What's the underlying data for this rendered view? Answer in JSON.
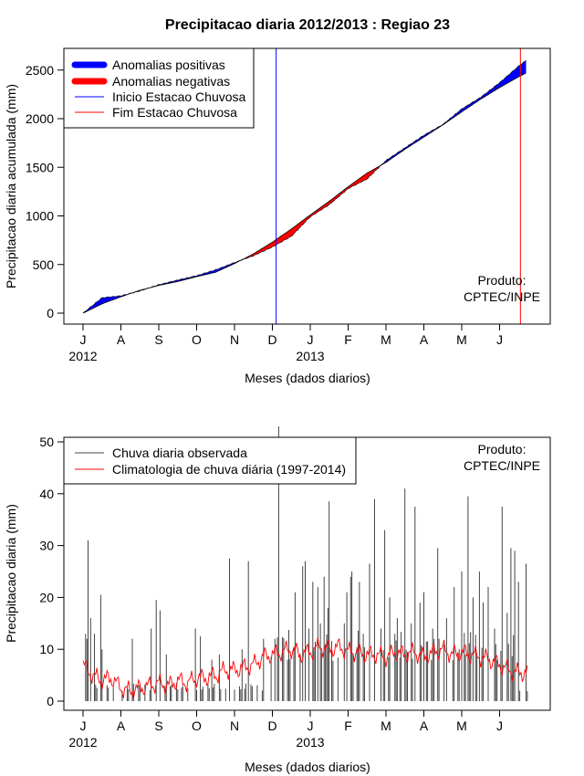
{
  "chart_data": [
    {
      "type": "area",
      "title": "Precipitacao diaria 2012/2013 : Regiao 23",
      "xlabel": "Meses (dados diarios)",
      "ylabel": "Precipitacao diaria acumulada (mm)",
      "ylim": [
        -100,
        2800
      ],
      "yticks": [
        0,
        500,
        1000,
        1500,
        2000,
        2500
      ],
      "month_labels": [
        "J",
        "A",
        "S",
        "O",
        "N",
        "D",
        "J",
        "F",
        "M",
        "A",
        "M",
        "J"
      ],
      "year_labels": [
        "2012",
        "2013"
      ],
      "legend_position": "top-left",
      "legend": [
        "Anomalias positivas",
        "Anomalias negativas",
        "Inicio Estacao Chuvosa",
        "Fim Estacao Chuvosa"
      ],
      "colors": {
        "positive": "#0000ff",
        "negative": "#ff0000",
        "start": "#0000ff",
        "end": "#ff0000"
      },
      "rainy_season_start_month": 5.1,
      "rainy_season_end_month": 11.55,
      "observed_month_points": [
        [
          0,
          0
        ],
        [
          0.5,
          158
        ],
        [
          1,
          178
        ],
        [
          1.5,
          228
        ],
        [
          2,
          292
        ],
        [
          2.5,
          340
        ],
        [
          3,
          385
        ],
        [
          3.5,
          445
        ],
        [
          4,
          520
        ],
        [
          4.5,
          590
        ],
        [
          5,
          680
        ],
        [
          5.5,
          790
        ],
        [
          6,
          990
        ],
        [
          6.5,
          1115
        ],
        [
          7,
          1280
        ],
        [
          7.5,
          1380
        ],
        [
          8,
          1570
        ],
        [
          8.5,
          1700
        ],
        [
          9,
          1830
        ],
        [
          9.5,
          1940
        ],
        [
          10,
          2100
        ],
        [
          10.5,
          2220
        ],
        [
          11,
          2370
        ],
        [
          11.5,
          2540
        ],
        [
          11.7,
          2600
        ]
      ],
      "climatology_month_points": [
        [
          0,
          0
        ],
        [
          0.5,
          95
        ],
        [
          1,
          168
        ],
        [
          1.5,
          235
        ],
        [
          2,
          285
        ],
        [
          2.5,
          325
        ],
        [
          3,
          375
        ],
        [
          3.5,
          420
        ],
        [
          4,
          510
        ],
        [
          4.5,
          610
        ],
        [
          5,
          730
        ],
        [
          5.5,
          865
        ],
        [
          6,
          1010
        ],
        [
          6.5,
          1150
        ],
        [
          7,
          1300
        ],
        [
          7.5,
          1440
        ],
        [
          8,
          1550
        ],
        [
          8.5,
          1685
        ],
        [
          9,
          1810
        ],
        [
          9.5,
          1935
        ],
        [
          10,
          2070
        ],
        [
          10.5,
          2200
        ],
        [
          11,
          2320
        ],
        [
          11.5,
          2430
        ],
        [
          11.7,
          2470
        ]
      ],
      "annotation": [
        "Produto:",
        "CPTEC/INPE"
      ]
    },
    {
      "type": "bar",
      "xlabel": "Meses (dados diarios)",
      "ylabel": "Precipitacao diaria (mm)",
      "ylim": [
        -1,
        51
      ],
      "yticks": [
        0,
        10,
        20,
        30,
        40,
        50
      ],
      "month_labels": [
        "J",
        "A",
        "S",
        "O",
        "N",
        "D",
        "J",
        "F",
        "M",
        "A",
        "M",
        "J"
      ],
      "year_labels": [
        "2012",
        "2013"
      ],
      "legend_position": "top-left",
      "legend": [
        "Chuva diaria observada",
        "Climatologia de chuva diária (1997-2014)"
      ],
      "colors": {
        "observed": "#444444",
        "climatology": "#ff0000"
      },
      "observed_peaks": [
        [
          0.05,
          13
        ],
        [
          0.1,
          12
        ],
        [
          0.13,
          31
        ],
        [
          0.2,
          16
        ],
        [
          0.3,
          13
        ],
        [
          0.45,
          20.5
        ],
        [
          0.5,
          10
        ],
        [
          1.3,
          12
        ],
        [
          1.8,
          14
        ],
        [
          1.95,
          19.5
        ],
        [
          2.05,
          17.5
        ],
        [
          2.2,
          9
        ],
        [
          2.95,
          14
        ],
        [
          3.1,
          12.5
        ],
        [
          3.4,
          8
        ],
        [
          3.6,
          9
        ],
        [
          3.85,
          27.5
        ],
        [
          4.2,
          10
        ],
        [
          4.35,
          27
        ],
        [
          4.75,
          12
        ],
        [
          5.05,
          12
        ],
        [
          5.15,
          53
        ],
        [
          5.6,
          21
        ],
        [
          5.8,
          26
        ],
        [
          5.85,
          27
        ],
        [
          5.95,
          14
        ],
        [
          6.05,
          23
        ],
        [
          6.2,
          22
        ],
        [
          6.25,
          15
        ],
        [
          6.35,
          24
        ],
        [
          6.45,
          18
        ],
        [
          6.5,
          38.5
        ],
        [
          6.9,
          15
        ],
        [
          6.95,
          21
        ],
        [
          7.05,
          24
        ],
        [
          7.1,
          25
        ],
        [
          7.3,
          23
        ],
        [
          7.4,
          13
        ],
        [
          7.55,
          26.5
        ],
        [
          7.7,
          39
        ],
        [
          7.85,
          14
        ],
        [
          7.95,
          33
        ],
        [
          8.1,
          20
        ],
        [
          8.3,
          16
        ],
        [
          8.5,
          41
        ],
        [
          8.65,
          15
        ],
        [
          8.75,
          37.5
        ],
        [
          8.9,
          19
        ],
        [
          9,
          21
        ],
        [
          9.25,
          12
        ],
        [
          9.35,
          29.5
        ],
        [
          9.6,
          16
        ],
        [
          9.8,
          22
        ],
        [
          10,
          25
        ],
        [
          10.15,
          39.5
        ],
        [
          10.3,
          20
        ],
        [
          10.45,
          25
        ],
        [
          10.55,
          19
        ],
        [
          10.7,
          22
        ],
        [
          10.85,
          14
        ],
        [
          11.05,
          37.5
        ],
        [
          11.2,
          17
        ],
        [
          11.3,
          29.5
        ],
        [
          11.4,
          29
        ],
        [
          11.5,
          23
        ],
        [
          11.7,
          26.5
        ]
      ],
      "climatology_month_points": [
        [
          0,
          7
        ],
        [
          0.25,
          5
        ],
        [
          0.5,
          4
        ],
        [
          0.75,
          4.5
        ],
        [
          1,
          2.5
        ],
        [
          1.25,
          2
        ],
        [
          1.5,
          2.5
        ],
        [
          1.75,
          3
        ],
        [
          2,
          3.5
        ],
        [
          2.25,
          3
        ],
        [
          2.5,
          4
        ],
        [
          2.75,
          3.5
        ],
        [
          3,
          4.5
        ],
        [
          3.25,
          4.5
        ],
        [
          3.5,
          5
        ],
        [
          3.75,
          6
        ],
        [
          4,
          6
        ],
        [
          4.25,
          6.5
        ],
        [
          4.5,
          7
        ],
        [
          4.75,
          8.5
        ],
        [
          5,
          9
        ],
        [
          5.25,
          9.5
        ],
        [
          5.5,
          10
        ],
        [
          5.75,
          9
        ],
        [
          6,
          9.5
        ],
        [
          6.25,
          10.5
        ],
        [
          6.5,
          10
        ],
        [
          6.75,
          10.5
        ],
        [
          7,
          9.5
        ],
        [
          7.25,
          9.5
        ],
        [
          7.5,
          9
        ],
        [
          7.75,
          9
        ],
        [
          8,
          8.5
        ],
        [
          8.25,
          9.5
        ],
        [
          8.5,
          9
        ],
        [
          8.75,
          9.5
        ],
        [
          9,
          8.5
        ],
        [
          9.25,
          9.5
        ],
        [
          9.5,
          10
        ],
        [
          9.75,
          9
        ],
        [
          10,
          9.5
        ],
        [
          10.25,
          9
        ],
        [
          10.5,
          8.5
        ],
        [
          10.75,
          8
        ],
        [
          11,
          7
        ],
        [
          11.25,
          6
        ],
        [
          11.5,
          5.5
        ],
        [
          11.7,
          5.5
        ]
      ],
      "annotation": [
        "Produto:",
        "CPTEC/INPE"
      ]
    }
  ]
}
